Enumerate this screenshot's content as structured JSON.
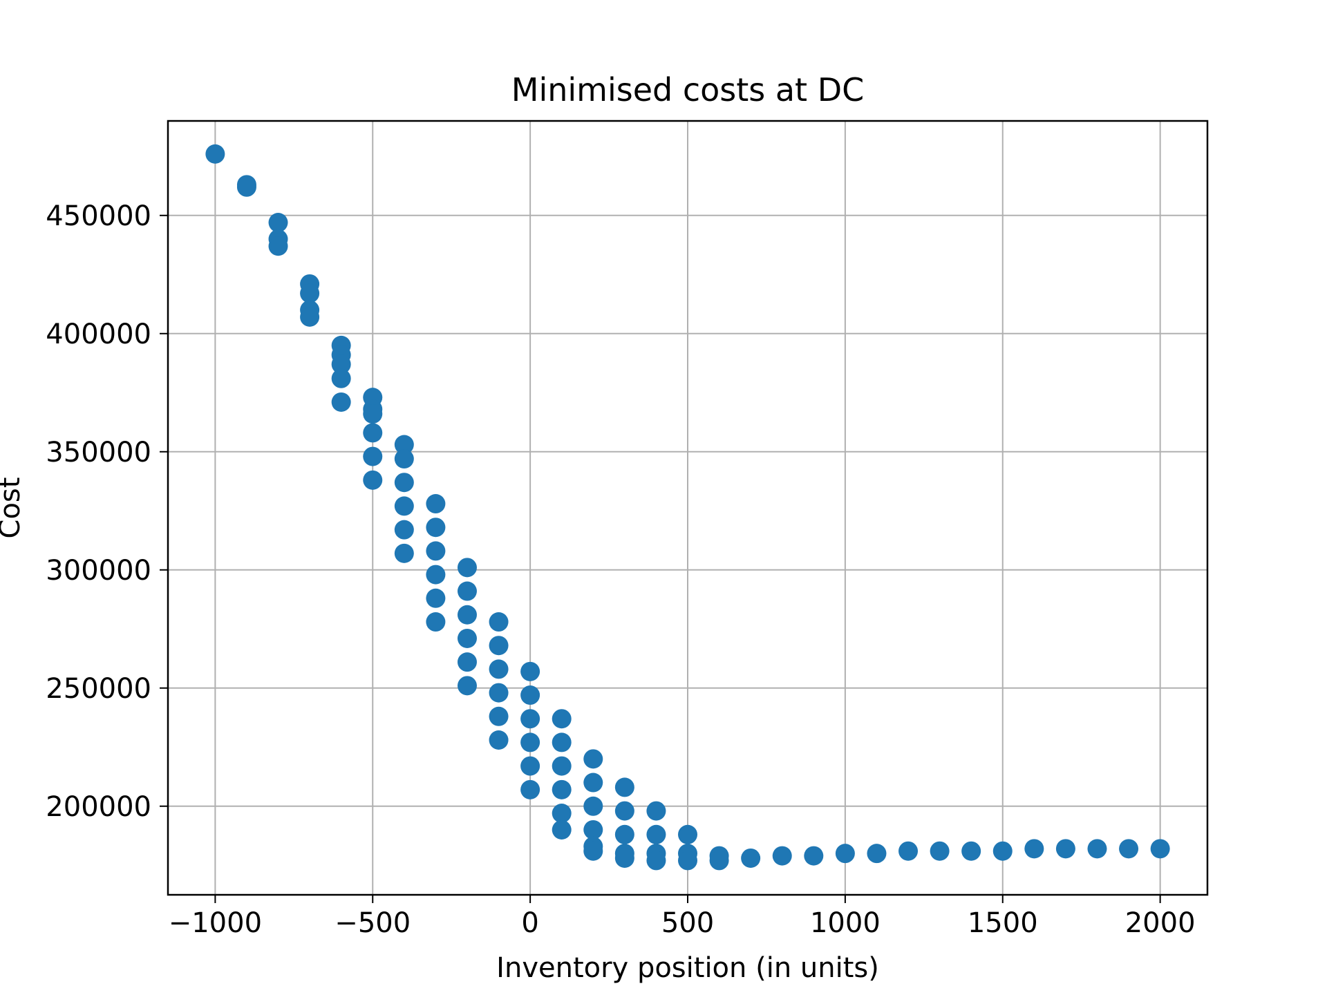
{
  "chart_data": {
    "type": "scatter",
    "title": "Minimised costs at DC",
    "xlabel": "Inventory position (in units)",
    "ylabel": "Cost",
    "xlim": [
      -1150,
      2150
    ],
    "ylim": [
      162500,
      490000
    ],
    "xticks": [
      -1000,
      -500,
      0,
      500,
      1000,
      1500,
      2000
    ],
    "xtick_labels": [
      "−1000",
      "−500",
      "0",
      "500",
      "1000",
      "1500",
      "2000"
    ],
    "yticks": [
      200000,
      250000,
      300000,
      350000,
      400000,
      450000
    ],
    "ytick_labels": [
      "200000",
      "250000",
      "300000",
      "350000",
      "400000",
      "450000"
    ],
    "grid": true,
    "marker_color": "#1f77b4",
    "series": [
      {
        "points": [
          [
            -1000,
            476000
          ],
          [
            -900,
            463000
          ],
          [
            -900,
            462000
          ],
          [
            -800,
            447000
          ],
          [
            -800,
            440000
          ],
          [
            -800,
            437000
          ],
          [
            -700,
            421000
          ],
          [
            -700,
            417000
          ],
          [
            -700,
            410000
          ],
          [
            -700,
            407000
          ],
          [
            -600,
            395000
          ],
          [
            -600,
            391000
          ],
          [
            -600,
            387000
          ],
          [
            -600,
            381000
          ],
          [
            -600,
            371000
          ],
          [
            -500,
            373000
          ],
          [
            -500,
            368000
          ],
          [
            -500,
            366000
          ],
          [
            -500,
            358000
          ],
          [
            -500,
            348000
          ],
          [
            -500,
            338000
          ],
          [
            -400,
            353000
          ],
          [
            -400,
            347000
          ],
          [
            -400,
            337000
          ],
          [
            -400,
            327000
          ],
          [
            -400,
            317000
          ],
          [
            -400,
            307000
          ],
          [
            -300,
            328000
          ],
          [
            -300,
            318000
          ],
          [
            -300,
            308000
          ],
          [
            -300,
            298000
          ],
          [
            -300,
            288000
          ],
          [
            -300,
            278000
          ],
          [
            -200,
            301000
          ],
          [
            -200,
            291000
          ],
          [
            -200,
            281000
          ],
          [
            -200,
            271000
          ],
          [
            -200,
            261000
          ],
          [
            -200,
            251000
          ],
          [
            -100,
            278000
          ],
          [
            -100,
            268000
          ],
          [
            -100,
            258000
          ],
          [
            -100,
            248000
          ],
          [
            -100,
            238000
          ],
          [
            -100,
            228000
          ],
          [
            0,
            257000
          ],
          [
            0,
            247000
          ],
          [
            0,
            237000
          ],
          [
            0,
            227000
          ],
          [
            0,
            217000
          ],
          [
            0,
            207000
          ],
          [
            100,
            237000
          ],
          [
            100,
            227000
          ],
          [
            100,
            217000
          ],
          [
            100,
            207000
          ],
          [
            100,
            197000
          ],
          [
            100,
            190000
          ],
          [
            200,
            220000
          ],
          [
            200,
            210000
          ],
          [
            200,
            200000
          ],
          [
            200,
            190000
          ],
          [
            200,
            183000
          ],
          [
            200,
            181000
          ],
          [
            300,
            208000
          ],
          [
            300,
            198000
          ],
          [
            300,
            188000
          ],
          [
            300,
            180000
          ],
          [
            300,
            178000
          ],
          [
            400,
            198000
          ],
          [
            400,
            188000
          ],
          [
            400,
            180000
          ],
          [
            400,
            177000
          ],
          [
            500,
            188000
          ],
          [
            500,
            180000
          ],
          [
            500,
            177000
          ],
          [
            600,
            179000
          ],
          [
            600,
            177000
          ],
          [
            700,
            178000
          ],
          [
            800,
            179000
          ],
          [
            900,
            179000
          ],
          [
            1000,
            180000
          ],
          [
            1100,
            180000
          ],
          [
            1200,
            181000
          ],
          [
            1300,
            181000
          ],
          [
            1400,
            181000
          ],
          [
            1500,
            181000
          ],
          [
            1600,
            182000
          ],
          [
            1700,
            182000
          ],
          [
            1800,
            182000
          ],
          [
            1900,
            182000
          ],
          [
            2000,
            182000
          ]
        ]
      }
    ]
  }
}
